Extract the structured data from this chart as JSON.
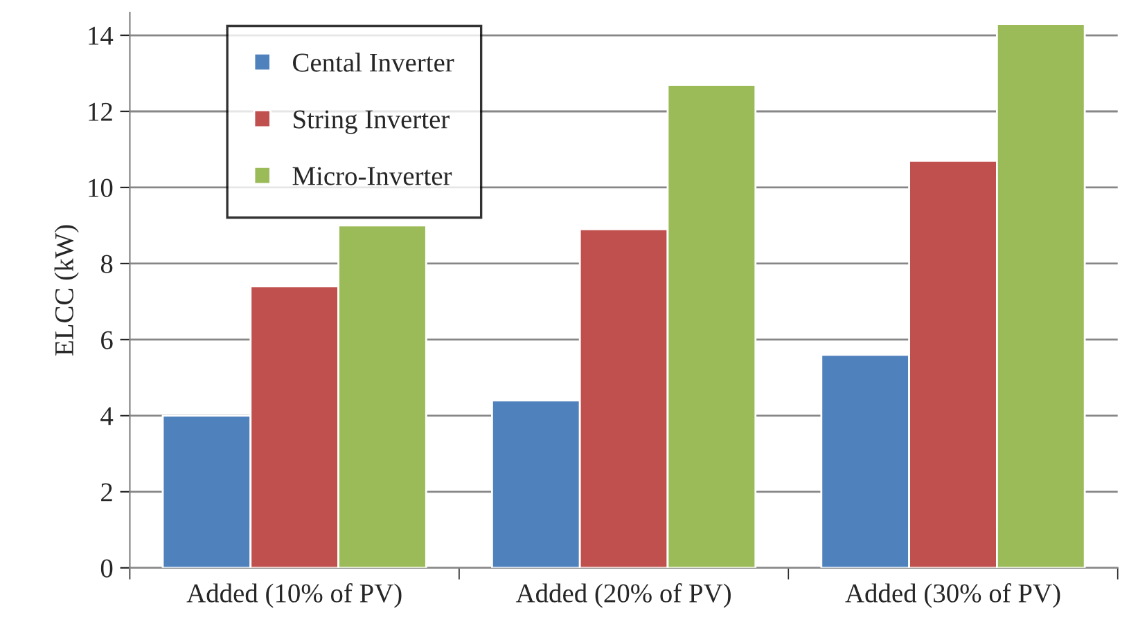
{
  "chart_data": {
    "type": "bar",
    "ylabel": "ELCC (kW)",
    "categories": [
      "Added (10% of PV)",
      "Added (20% of PV)",
      "Added (30% of PV)"
    ],
    "series": [
      {
        "name": "Cental Inverter",
        "color": "#4f81bd",
        "values": [
          4.0,
          4.4,
          5.6
        ]
      },
      {
        "name": "String Inverter",
        "color": "#c0504d",
        "values": [
          7.4,
          8.9,
          10.7
        ]
      },
      {
        "name": "Micro-Inverter",
        "color": "#9bbb59",
        "values": [
          9.0,
          12.7,
          14.3
        ]
      }
    ],
    "ylim": [
      0,
      14.6
    ],
    "yticks": [
      0,
      2,
      4,
      6,
      8,
      10,
      12,
      14
    ],
    "grid": "y",
    "legend": "top left"
  }
}
